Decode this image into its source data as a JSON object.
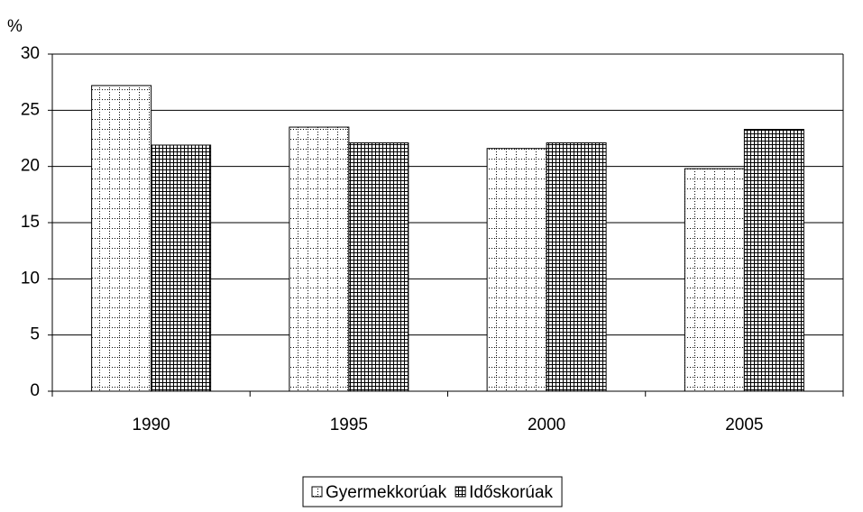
{
  "chart_data": {
    "type": "bar",
    "y_label": "%",
    "categories": [
      "1990",
      "1995",
      "2000",
      "2005"
    ],
    "series": [
      {
        "name": "Gyermekkorúak",
        "color": "#000000",
        "pattern": "dotted-grid",
        "values": [
          27.2,
          23.5,
          21.6,
          19.8
        ]
      },
      {
        "name": "Időskorúak",
        "color": "#000000",
        "pattern": "dense-grid",
        "values": [
          21.9,
          22.1,
          22.1,
          23.3
        ]
      }
    ],
    "ylim": [
      0,
      30
    ],
    "yticks": [
      0,
      5,
      10,
      15,
      20,
      25,
      30
    ],
    "grid": true,
    "legend": "bottom"
  }
}
